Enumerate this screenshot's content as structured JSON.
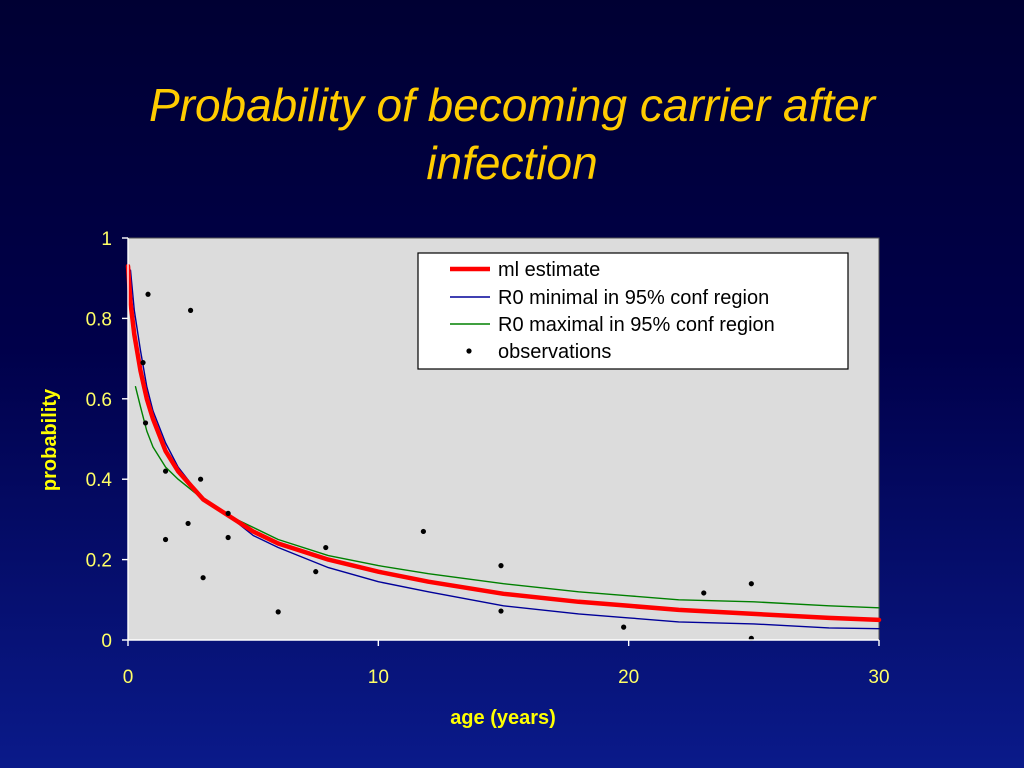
{
  "slide": {
    "title": "Probability of becoming carrier after infection"
  },
  "chart_data": {
    "type": "line",
    "xlabel": "age (years)",
    "ylabel": "probability",
    "xlim": [
      0,
      30
    ],
    "ylim": [
      0,
      1
    ],
    "xticks": [
      0,
      10,
      20,
      30
    ],
    "yticks": [
      0,
      0.2,
      0.4,
      0.6,
      0.8,
      1
    ],
    "yticklabels": [
      "0",
      "0.2",
      "0.4",
      "0.6",
      "0.8",
      "1"
    ],
    "grid": false,
    "legend_position": "top-right",
    "colors": {
      "plot_background": "#dcdcdc",
      "ml_estimate": "#ff0000",
      "r0_minimal": "#000099",
      "r0_maximal": "#008000",
      "observations": "#000000"
    },
    "series": [
      {
        "name": "ml estimate",
        "style": "thick-line",
        "x": [
          0,
          0.1,
          0.25,
          0.5,
          0.75,
          1,
          1.5,
          2,
          3,
          4,
          5,
          6,
          8,
          10,
          12,
          15,
          18,
          20,
          22,
          25,
          28,
          30
        ],
        "y": [
          0.93,
          0.84,
          0.76,
          0.67,
          0.6,
          0.55,
          0.47,
          0.42,
          0.35,
          0.31,
          0.27,
          0.24,
          0.2,
          0.17,
          0.145,
          0.115,
          0.095,
          0.085,
          0.075,
          0.065,
          0.055,
          0.05
        ]
      },
      {
        "name": "R0 minimal in 95% conf region",
        "style": "thin-line",
        "x": [
          0.1,
          0.25,
          0.5,
          0.75,
          1,
          1.5,
          2,
          3,
          4,
          5,
          6,
          8,
          10,
          12,
          15,
          18,
          20,
          22,
          25,
          28,
          30
        ],
        "y": [
          0.92,
          0.82,
          0.72,
          0.63,
          0.57,
          0.49,
          0.43,
          0.35,
          0.31,
          0.26,
          0.23,
          0.18,
          0.145,
          0.12,
          0.085,
          0.065,
          0.055,
          0.045,
          0.04,
          0.03,
          0.028
        ]
      },
      {
        "name": "R0 maximal in 95% conf region",
        "style": "thin-line",
        "x": [
          0.3,
          0.5,
          0.75,
          1,
          1.5,
          2,
          3,
          4,
          5,
          6,
          8,
          10,
          12,
          15,
          18,
          20,
          22,
          25,
          28,
          30
        ],
        "y": [
          0.63,
          0.58,
          0.52,
          0.48,
          0.43,
          0.4,
          0.35,
          0.31,
          0.28,
          0.25,
          0.21,
          0.185,
          0.165,
          0.14,
          0.12,
          0.11,
          0.1,
          0.095,
          0.085,
          0.08
        ]
      },
      {
        "name": "observations",
        "style": "points",
        "x": [
          0.8,
          2.5,
          0.6,
          0.7,
          1.5,
          2.9,
          1.5,
          2.4,
          3,
          4,
          4,
          6,
          7.5,
          7.9,
          11.8,
          14.9,
          14.9,
          19.8,
          23,
          24.9,
          24.9
        ],
        "y": [
          0.86,
          0.82,
          0.69,
          0.54,
          0.42,
          0.4,
          0.25,
          0.29,
          0.155,
          0.315,
          0.255,
          0.07,
          0.17,
          0.23,
          0.27,
          0.185,
          0.072,
          0.032,
          0.117,
          0.14,
          0.004
        ]
      }
    ]
  }
}
